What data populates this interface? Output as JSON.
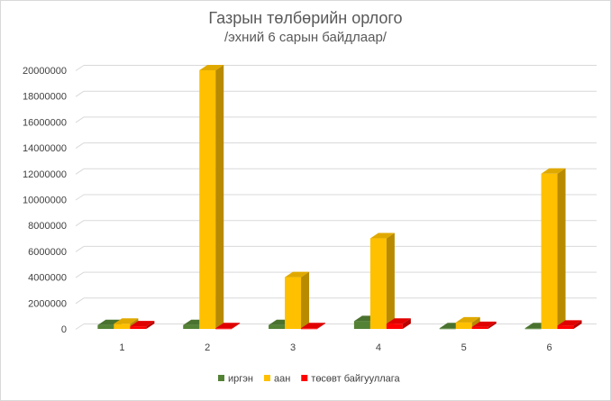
{
  "chart_data": {
    "type": "bar",
    "title": "Газрын төлбөрийн орлого",
    "subtitle": "/эхний 6 сарын байдлаар/",
    "xlabel": "",
    "ylabel": "",
    "categories": [
      "1",
      "2",
      "3",
      "4",
      "5",
      "6"
    ],
    "ylim": [
      0,
      20000000
    ],
    "yticks": [
      "0",
      "2000000",
      "4000000",
      "6000000",
      "8000000",
      "10000000",
      "12000000",
      "14000000",
      "16000000",
      "18000000",
      "20000000"
    ],
    "series": [
      {
        "name": "иргэн",
        "color": "#548235",
        "values": [
          300000,
          300000,
          300000,
          600000,
          50000,
          50000
        ]
      },
      {
        "name": "аан",
        "color": "#ffc000",
        "values": [
          400000,
          20000000,
          4000000,
          7000000,
          500000,
          12000000
        ]
      },
      {
        "name": "төсөвт байгууллага",
        "color": "#ff0000",
        "values": [
          200000,
          50000,
          50000,
          400000,
          150000,
          250000
        ]
      }
    ],
    "grid": true,
    "legend_position": "bottom",
    "style": "3d-clustered-column"
  }
}
